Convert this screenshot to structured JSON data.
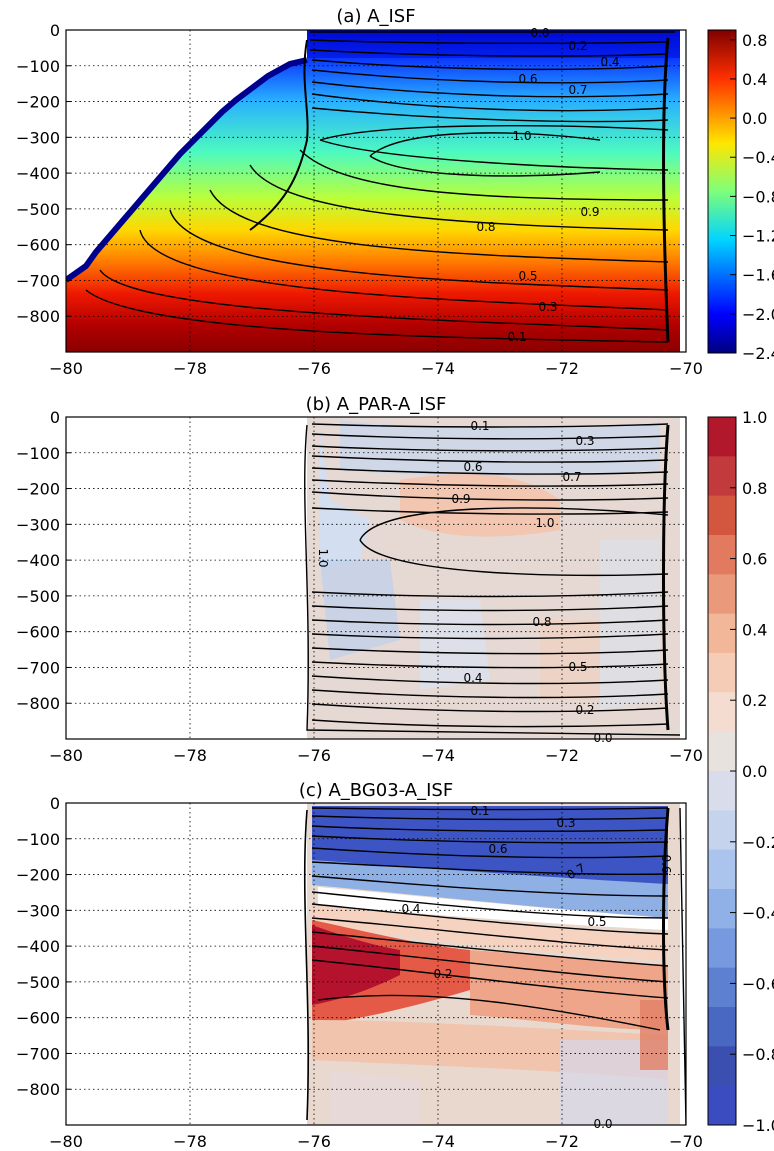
{
  "chart_data": [
    {
      "type": "heatmap",
      "title": "(a) A_ISF",
      "xlim": [
        -80,
        -70
      ],
      "ylim": [
        -900,
        0
      ],
      "x_ticks": [
        "−80",
        "−78",
        "−76",
        "−74",
        "−72",
        "−70"
      ],
      "y_ticks": [
        "0",
        "−100",
        "−200",
        "−300",
        "−400",
        "−500",
        "−600",
        "−700",
        "−800"
      ],
      "grid": true,
      "colorbar": {
        "colormap": "jet",
        "range": [
          -2.4,
          0.9
        ],
        "ticks": [
          "0.8",
          "0.4",
          "0.0",
          "−0.4",
          "−0.8",
          "−1.2",
          "−1.6",
          "−2.0",
          "−2.4"
        ]
      },
      "contour_labels": [
        "0.0",
        "0.2",
        "0.4",
        "0.6",
        "0.7",
        "1.0",
        "0.9",
        "0.8",
        "0.5",
        "0.3",
        "0.1"
      ]
    },
    {
      "type": "heatmap",
      "title": "(b) A_PAR-A_ISF",
      "xlim": [
        -80,
        -70
      ],
      "ylim": [
        -900,
        0
      ],
      "x_ticks": [
        "−80",
        "−78",
        "−76",
        "−74",
        "−72",
        "−70"
      ],
      "y_ticks": [
        "0",
        "−100",
        "−200",
        "−300",
        "−400",
        "−500",
        "−600",
        "−700",
        "−800"
      ],
      "grid": true,
      "contour_labels": [
        "0.1",
        "0.3",
        "0.6",
        "0.7",
        "0.9",
        "1.0",
        "1.0",
        "0.8",
        "0.5",
        "0.4",
        "0.2",
        "0.0"
      ]
    },
    {
      "type": "heatmap",
      "title": "(c) A_BG03-A_ISF",
      "xlim": [
        -80,
        -70
      ],
      "ylim": [
        -900,
        0
      ],
      "x_ticks": [
        "−80",
        "−78",
        "−76",
        "−74",
        "−72",
        "−70"
      ],
      "y_ticks": [
        "0",
        "−100",
        "−200",
        "−300",
        "−400",
        "−500",
        "−600",
        "−700",
        "−800"
      ],
      "grid": true,
      "colorbar": {
        "colormap": "RdBu_r",
        "range": [
          -1.0,
          1.0
        ],
        "ticks": [
          "1.0",
          "0.8",
          "0.6",
          "0.4",
          "0.2",
          "0.0",
          "−0.2",
          "−0.4",
          "−0.6",
          "−0.8",
          "−1.0"
        ]
      },
      "contour_labels": [
        "0.1",
        "0.3",
        "0.6",
        "0.7",
        "0.6",
        "0.4",
        "0.5",
        "0.2",
        "0.0"
      ]
    }
  ]
}
